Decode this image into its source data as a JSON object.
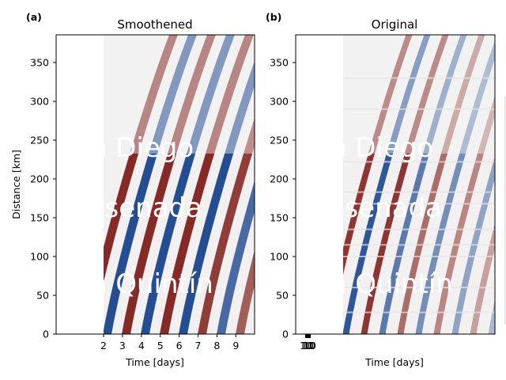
{
  "chart_data": [
    {
      "type": "heatmap",
      "panel_label": "(a)",
      "title": "Smoothened",
      "xlabel": "Time [days]",
      "ylabel": "Distance [km]",
      "xticks": [
        "2",
        "3",
        "4",
        "5",
        "6",
        "7",
        "8",
        "9"
      ],
      "yticks": [
        "0",
        "50",
        "100",
        "150",
        "200",
        "250",
        "300",
        "350"
      ],
      "data_start_day": 2,
      "places": [
        "an Diego",
        "nsenada",
        "an Quintín"
      ]
    },
    {
      "type": "heatmap",
      "panel_label": "(b)",
      "title": "Original",
      "xlabel": "Time [days]",
      "ylabel": "",
      "xticks": [
        "10",
        "10",
        "10",
        "10"
      ],
      "yticks": [
        "0",
        "50",
        "100",
        "150",
        "200",
        "250",
        "300",
        "350"
      ],
      "places": [
        "an Diego",
        "nsenada",
        "an Quintín"
      ]
    }
  ],
  "colors": {
    "red": "#7a1410",
    "blue": "#0d3a86",
    "neutral": "#f3f3f3",
    "text_overlay": "#ffffff"
  }
}
